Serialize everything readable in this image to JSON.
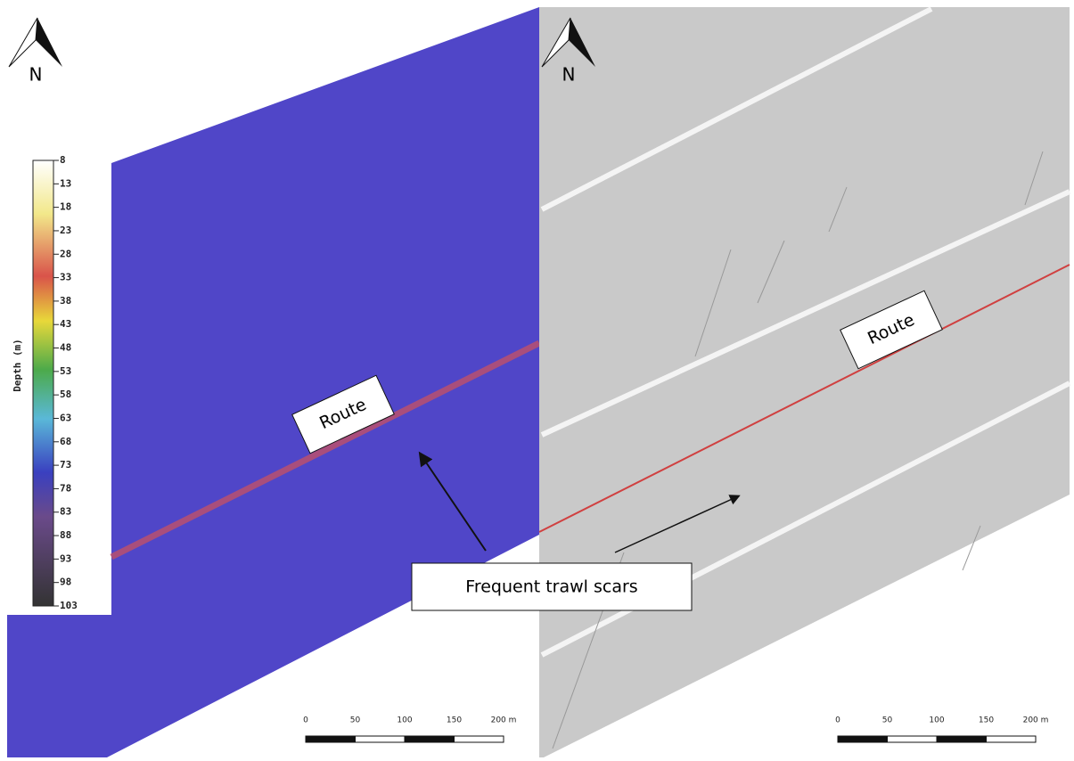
{
  "left_panel": {
    "north": "N",
    "legend": {
      "title": "Depth (m)",
      "ticks": [
        8,
        13,
        18,
        23,
        28,
        33,
        38,
        43,
        48,
        53,
        58,
        63,
        68,
        73,
        78,
        83,
        88,
        93,
        98,
        103
      ]
    },
    "route_label": "Route",
    "scale_bar": [
      "0",
      "50",
      "100",
      "150",
      "200 m"
    ]
  },
  "right_panel": {
    "north": "N",
    "route_label": "Route",
    "scale_bar": [
      "0",
      "50",
      "100",
      "150",
      "200 m"
    ]
  },
  "annotation": "Frequent trawl scars"
}
